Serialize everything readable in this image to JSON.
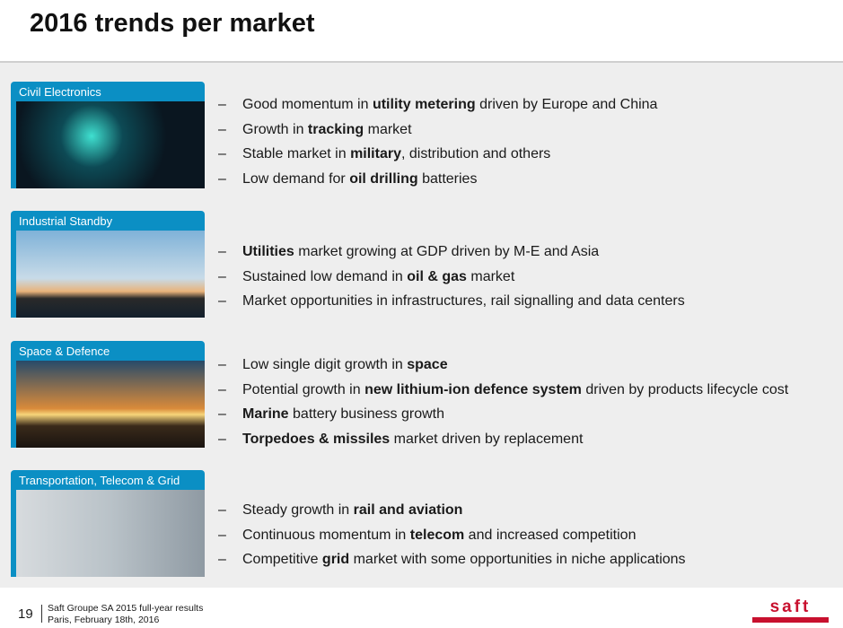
{
  "title": "2016 trends per market",
  "markets": [
    {
      "name": "Civil Electronics",
      "bullets": [
        [
          [
            "Good momentum in ",
            0
          ],
          [
            "utility metering",
            1
          ],
          [
            " driven by Europe and China",
            0
          ]
        ],
        [
          [
            "Growth in ",
            0
          ],
          [
            "tracking",
            1
          ],
          [
            " market",
            0
          ]
        ],
        [
          [
            "Stable market in ",
            0
          ],
          [
            "military",
            1
          ],
          [
            ", distribution and others",
            0
          ]
        ],
        [
          [
            "Low demand for ",
            0
          ],
          [
            "oil drilling",
            1
          ],
          [
            " batteries",
            0
          ]
        ]
      ]
    },
    {
      "name": "Industrial Standby",
      "bullets": [
        [
          [
            "Utilities",
            1
          ],
          [
            " market growing at GDP driven by M-E and Asia",
            0
          ]
        ],
        [
          [
            "Sustained low demand in ",
            0
          ],
          [
            "oil & gas",
            1
          ],
          [
            " market",
            0
          ]
        ],
        [
          [
            "Market opportunities in infrastructures, rail signalling and data centers",
            0
          ]
        ]
      ]
    },
    {
      "name": "Space & Defence",
      "bullets": [
        [
          [
            "Low single digit growth in ",
            0
          ],
          [
            "space",
            1
          ]
        ],
        [
          [
            "Potential growth in ",
            0
          ],
          [
            "new lithium-ion defence system",
            1
          ],
          [
            " driven by products lifecycle cost",
            0
          ]
        ],
        [
          [
            "Marine",
            1
          ],
          [
            " battery business growth",
            0
          ]
        ],
        [
          [
            "Torpedoes & missiles",
            1
          ],
          [
            " market driven by replacement",
            0
          ]
        ]
      ]
    },
    {
      "name": "Transportation, Telecom & Grid",
      "bullets": [
        [
          [
            "Steady growth in ",
            0
          ],
          [
            "rail and aviation",
            1
          ]
        ],
        [
          [
            "Continuous momentum in ",
            0
          ],
          [
            "telecom",
            1
          ],
          [
            " and increased competition",
            0
          ]
        ],
        [
          [
            "Competitive ",
            0
          ],
          [
            "grid",
            1
          ],
          [
            " market with some opportunities in niche applications",
            0
          ]
        ]
      ]
    }
  ],
  "dash": "–",
  "footer": {
    "page": "19",
    "line1": "Saft Groupe SA 2015 full-year results",
    "line2": "Paris, February 18th, 2016"
  },
  "logo": "saft",
  "colors": {
    "accent": "#0b8fc4",
    "brand": "#c8102e"
  }
}
